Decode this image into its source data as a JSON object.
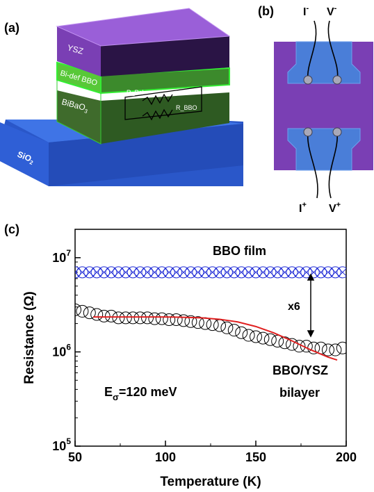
{
  "panel_a": {
    "label": "(a)",
    "layers": {
      "ysz": "YSZ",
      "bidef": "Bi-def BBO",
      "bibao": "BiBaO",
      "bibao_sub": "3",
      "sio": "SiO",
      "sio_sub": "2"
    },
    "resistors": {
      "pol": "R_Pol",
      "bbo": "R_BBO"
    },
    "colors": {
      "ysz": "#7a3fb4",
      "bidef": "#33cc33",
      "bibao": "#3e6b2c",
      "sio2": "#2f5fd6"
    }
  },
  "panel_b": {
    "label": "(b)",
    "contacts": {
      "i_minus": "I",
      "i_minus_sup": "-",
      "v_minus": "V",
      "v_minus_sup": "-",
      "i_plus": "I",
      "i_plus_sup": "+",
      "v_plus": "V",
      "v_plus_sup": "+"
    },
    "colors": {
      "substrate": "#7a3fb4",
      "pad": "#4a7ed8"
    }
  },
  "panel_c": {
    "label": "(c)"
  },
  "chart_data": {
    "type": "scatter",
    "xlabel": "Temperature (K)",
    "ylabel": "Resistance (Ω)",
    "xlim": [
      50,
      200
    ],
    "ylim": [
      100000,
      20000000
    ],
    "yscale": "log",
    "x_ticks": [
      50,
      100,
      150,
      200
    ],
    "y_ticks": [
      {
        "value": 100000,
        "base": "10",
        "exp": "5"
      },
      {
        "value": 1000000,
        "base": "10",
        "exp": "6"
      },
      {
        "value": 10000000,
        "base": "10",
        "exp": "7"
      }
    ],
    "series": [
      {
        "name": "BBO film",
        "color": "#1f2bd6",
        "marker": "circle-x",
        "x": [
          50,
          54,
          58,
          62,
          66,
          70,
          74,
          78,
          82,
          86,
          90,
          94,
          98,
          102,
          106,
          110,
          114,
          118,
          122,
          126,
          130,
          134,
          138,
          142,
          146,
          150,
          154,
          158,
          162,
          166,
          170,
          174,
          178,
          182,
          186,
          190,
          194,
          198
        ],
        "y": [
          7000000,
          7000000,
          7000000,
          7000000,
          7000000,
          7000000,
          7000000,
          7000000,
          7000000,
          7000000,
          7000000,
          7000000,
          7000000,
          7000000,
          7000000,
          7000000,
          7000000,
          7000000,
          7000000,
          7000000,
          7000000,
          7000000,
          7000000,
          7000000,
          7000000,
          7000000,
          7000000,
          7000000,
          7000000,
          7000000,
          7000000,
          7000000,
          7000000,
          7000000,
          7000000,
          7000000,
          7000000,
          7000000
        ]
      },
      {
        "name": "BBO/YSZ bilayer",
        "name_line1": "BBO/YSZ",
        "name_line2": "bilayer",
        "color": "#000000",
        "marker": "open-circle",
        "x": [
          50,
          54,
          58,
          62,
          66,
          70,
          74,
          78,
          82,
          86,
          90,
          94,
          98,
          102,
          106,
          110,
          114,
          118,
          122,
          126,
          130,
          134,
          138,
          142,
          146,
          150,
          154,
          158,
          162,
          166,
          170,
          174,
          178,
          182,
          186,
          190,
          194,
          198
        ],
        "y": [
          2800000,
          2700000,
          2600000,
          2500000,
          2400000,
          2400000,
          2300000,
          2300000,
          2300000,
          2300000,
          2300000,
          2250000,
          2250000,
          2200000,
          2200000,
          2150000,
          2100000,
          2050000,
          2000000,
          1950000,
          1900000,
          1800000,
          1700000,
          1600000,
          1500000,
          1450000,
          1400000,
          1350000,
          1300000,
          1250000,
          1200000,
          1150000,
          1150000,
          1100000,
          1100000,
          1050000,
          1050000,
          1100000
        ]
      },
      {
        "name": "fit",
        "color": "#e02020",
        "marker": "line",
        "x": [
          60,
          70,
          80,
          90,
          100,
          110,
          120,
          130,
          140,
          150,
          160,
          170,
          180,
          190,
          195
        ],
        "y": [
          2350000,
          2350000,
          2350000,
          2350000,
          2350000,
          2330000,
          2300000,
          2220000,
          2080000,
          1860000,
          1590000,
          1310000,
          1060000,
          880000,
          820000
        ]
      }
    ],
    "annotations": {
      "factor": "x6",
      "activation": "E",
      "activation_sub": "σ",
      "activation_value": "=120 meV"
    }
  }
}
